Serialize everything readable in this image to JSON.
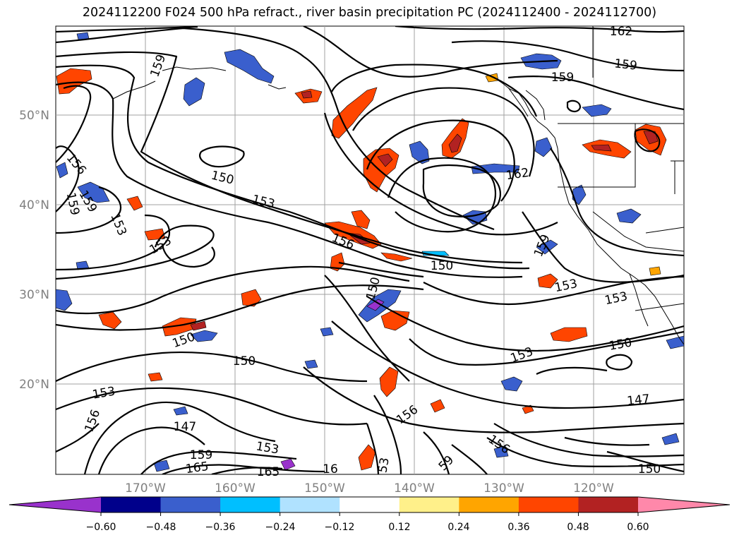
{
  "title": "2024112200 F024 500 hPa refract., river basin precipitation PC (2024112400 - 2024112700)",
  "lat_ticks": [
    "50°N",
    "40°N",
    "30°N",
    "20°N"
  ],
  "lon_ticks": [
    "170°W",
    "160°W",
    "150°W",
    "140°W",
    "130°W",
    "120°W"
  ],
  "contour_labels": [
    "162",
    "159",
    "159",
    "156",
    "159",
    "159",
    "153",
    "153",
    "150",
    "153",
    "156",
    "150",
    "159",
    "159",
    "162",
    "150",
    "153",
    "153",
    "150",
    "150",
    "150",
    "153",
    "153",
    "156",
    "156",
    "147",
    "147",
    "159",
    "165",
    "165",
    "16",
    "53",
    "59",
    "156",
    "150",
    "153"
  ],
  "colorbar": {
    "ticks": [
      "−0.60",
      "−0.48",
      "−0.36",
      "−0.24",
      "−0.12",
      "0.12",
      "0.24",
      "0.36",
      "0.48",
      "0.60"
    ],
    "colors": [
      "#9932cc",
      "#00008b",
      "#3a5fcd",
      "#00bfff",
      "#b0e2ff",
      "#ffffff",
      "#fff08a",
      "#ffa500",
      "#ff4500",
      "#b22222",
      "#ff88aa"
    ]
  }
}
